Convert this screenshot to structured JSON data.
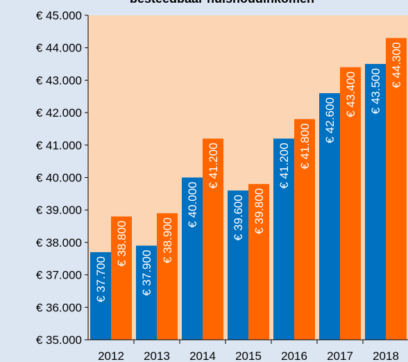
{
  "chart_data": {
    "type": "bar",
    "title": "besteedbaar huishoudinkomen",
    "categories": [
      "2012",
      "2013",
      "2014",
      "2015",
      "2016",
      "2017",
      "2018"
    ],
    "series": [
      {
        "color": "#0070c0",
        "values": [
          37700,
          37900,
          40000,
          39600,
          41200,
          42600,
          43500
        ],
        "value_labels": [
          "€ 37.700",
          "€ 37.900",
          "€ 40.000",
          "€ 39.600",
          "€ 41.200",
          "€ 42.600",
          "€ 43.500"
        ]
      },
      {
        "color": "#ff6600",
        "values": [
          38800,
          38900,
          41200,
          39800,
          41800,
          43400,
          44300
        ],
        "value_labels": [
          "€ 38.800",
          "€ 38.900",
          "€ 41.200",
          "€ 39.800",
          "€ 41.800",
          "€ 43.400",
          "€ 44.300"
        ]
      }
    ],
    "ylim": [
      35000,
      45000
    ],
    "yticks": [
      {
        "value": 35000,
        "label": "€ 35.000"
      },
      {
        "value": 36000,
        "label": "€ 36.000"
      },
      {
        "value": 37000,
        "label": "€ 37.000"
      },
      {
        "value": 38000,
        "label": "€ 38.000"
      },
      {
        "value": 39000,
        "label": "€ 39.000"
      },
      {
        "value": 40000,
        "label": "€ 40.000"
      },
      {
        "value": 41000,
        "label": "€ 41.000"
      },
      {
        "value": 42000,
        "label": "€ 42.000"
      },
      {
        "value": 43000,
        "label": "€ 43.000"
      },
      {
        "value": 44000,
        "label": "€ 44.000"
      },
      {
        "value": 45000,
        "label": "€ 45.000"
      }
    ],
    "grid": false
  }
}
